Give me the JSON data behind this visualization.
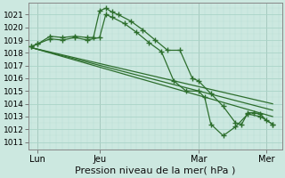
{
  "bg_color": "#cce8e0",
  "line_color": "#2d6e2d",
  "title": "Pression niveau de la mer( hPa )",
  "yticks": [
    1011,
    1012,
    1013,
    1014,
    1015,
    1016,
    1017,
    1018,
    1019,
    1020,
    1021
  ],
  "ylim": [
    1010.4,
    1021.9
  ],
  "xlim": [
    -0.5,
    40.5
  ],
  "xtick_positions": [
    1,
    11,
    27,
    38
  ],
  "xtick_labels": [
    "Lun",
    "Jeu",
    "Mar",
    "Mer"
  ],
  "line1_x": [
    0,
    1,
    3,
    5,
    7,
    9,
    10,
    11,
    12,
    13,
    14,
    16,
    18,
    20,
    22,
    24,
    26,
    27,
    29,
    31,
    33,
    34,
    35,
    36,
    37,
    38,
    39
  ],
  "line1_y": [
    1018.5,
    1018.7,
    1019.3,
    1019.2,
    1019.3,
    1019.2,
    1019.2,
    1021.3,
    1021.5,
    1021.2,
    1021.0,
    1020.5,
    1019.8,
    1019.0,
    1018.2,
    1018.2,
    1016.0,
    1015.8,
    1014.8,
    1013.8,
    1012.5,
    1012.4,
    1013.3,
    1013.3,
    1013.2,
    1012.7,
    1012.4
  ],
  "line2_x": [
    0,
    1,
    3,
    5,
    7,
    9,
    11,
    12,
    13,
    15,
    17,
    19,
    21,
    23,
    25,
    27,
    28,
    29,
    31,
    33,
    35,
    37,
    39
  ],
  "line2_y": [
    1018.5,
    1018.7,
    1019.1,
    1019.0,
    1019.2,
    1019.0,
    1019.2,
    1021.0,
    1020.8,
    1020.3,
    1019.6,
    1018.8,
    1018.1,
    1015.8,
    1015.0,
    1015.0,
    1014.5,
    1012.4,
    1011.5,
    1012.2,
    1013.2,
    1013.0,
    1012.4
  ],
  "trend_lines": [
    {
      "x": [
        0,
        39
      ],
      "y": [
        1018.4,
        1013.0
      ]
    },
    {
      "x": [
        0,
        39
      ],
      "y": [
        1018.4,
        1013.5
      ]
    },
    {
      "x": [
        0,
        39
      ],
      "y": [
        1018.4,
        1014.0
      ]
    }
  ],
  "vlines": [
    1,
    11,
    27,
    38
  ],
  "grid_major_color": "#aad4c8",
  "grid_minor_color": "#bbddd4",
  "tick_label_fontsize": 6.5,
  "xlabel_fontsize": 8
}
